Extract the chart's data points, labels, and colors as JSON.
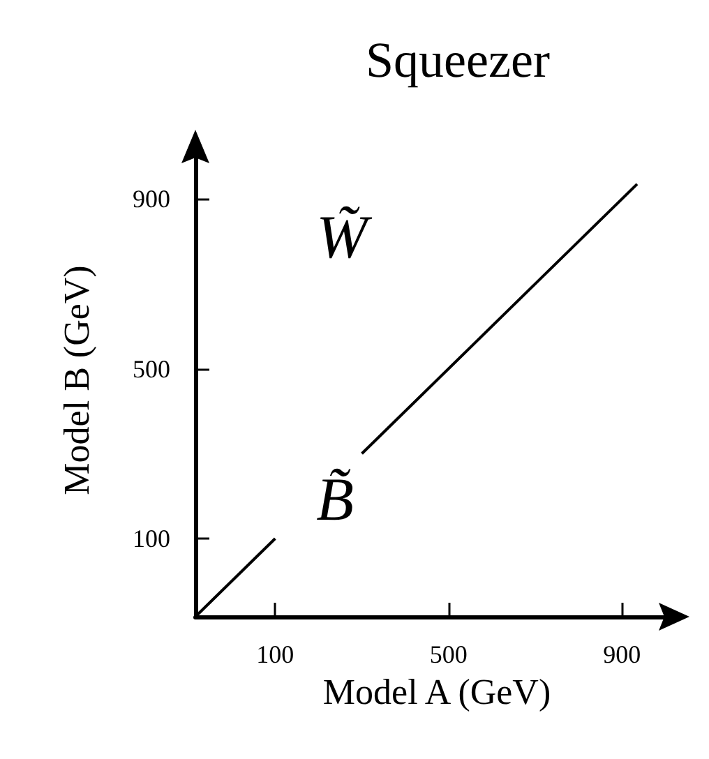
{
  "chart_data": {
    "type": "line",
    "title": "Squeezer",
    "xlabel": "Model A (GeV)",
    "ylabel": "Model B (GeV)",
    "x": [
      -84,
      100,
      200,
      300,
      935
    ],
    "series": [
      {
        "color": "#000000",
        "values": [
          -84,
          100,
          null,
          300,
          935
        ]
      }
    ],
    "xlim": [
      -84,
      1030
    ],
    "ylim": [
      -84,
      1030
    ],
    "xticks": [
      100,
      500,
      900
    ],
    "yticks": [
      100,
      500,
      900
    ],
    "marker": "none",
    "line_style": "solid",
    "annotations": [
      "W̃",
      "B̃"
    ]
  }
}
